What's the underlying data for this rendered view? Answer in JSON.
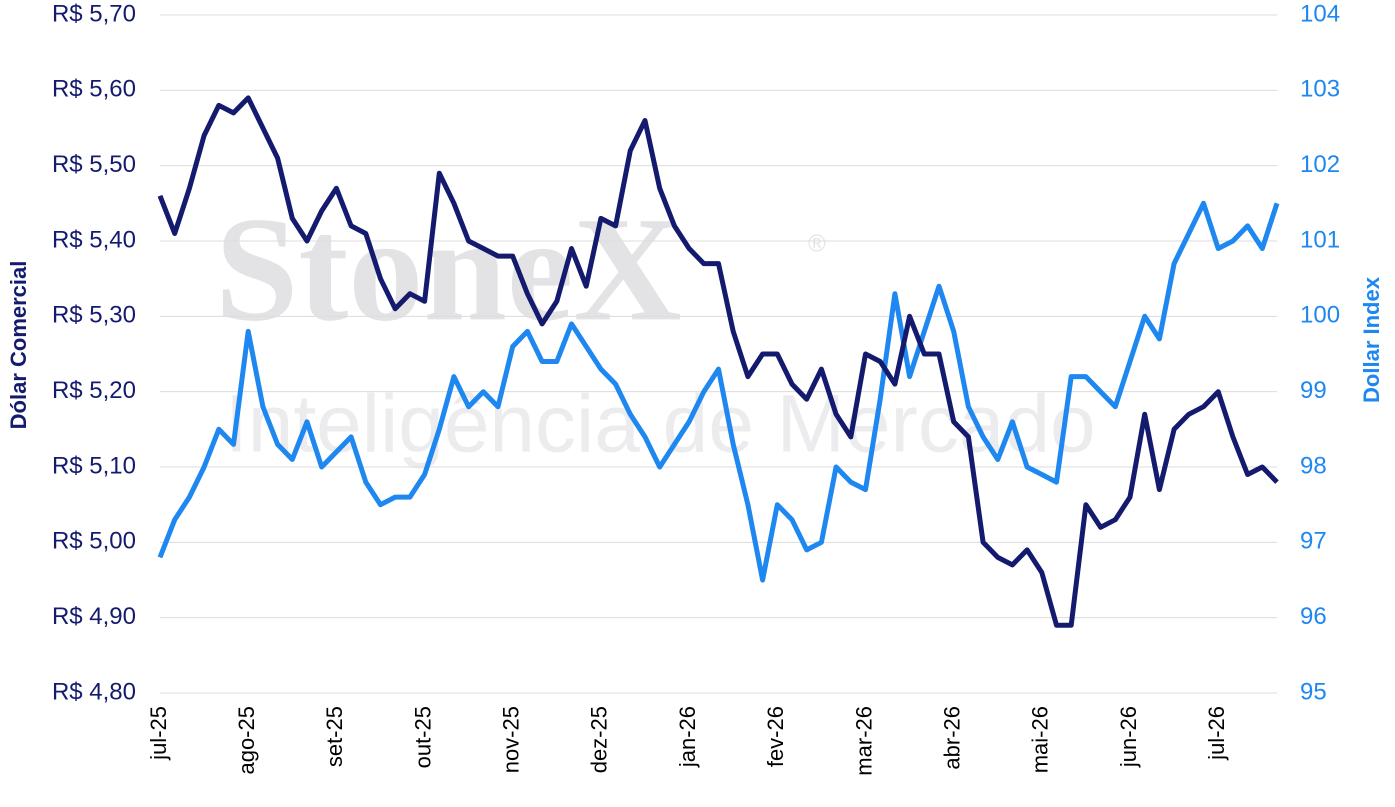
{
  "chart_data": {
    "type": "line",
    "watermark": [
      "StoneX",
      "®",
      "Inteligência de Mercado"
    ],
    "y_label": "Dólar Comercial",
    "y2_label": "Dollar Index",
    "categories": [
      "jul-25",
      null,
      null,
      null,
      null,
      null,
      "ago-25",
      null,
      null,
      null,
      null,
      null,
      "set-25",
      null,
      null,
      null,
      null,
      null,
      "out-25",
      null,
      null,
      null,
      null,
      null,
      "nov-25",
      null,
      null,
      null,
      null,
      null,
      "dez-25",
      null,
      null,
      null,
      null,
      null,
      "jan-26",
      null,
      null,
      null,
      null,
      null,
      "fev-26",
      null,
      null,
      null,
      null,
      null,
      "mar-26",
      null,
      null,
      null,
      null,
      null,
      "abr-26",
      null,
      null,
      null,
      null,
      null,
      "mai-26",
      null,
      null,
      null,
      null,
      null,
      "jun-26",
      null,
      null,
      null,
      null,
      null,
      "jul-26",
      null,
      null,
      null,
      null
    ],
    "series": [
      {
        "color": "#141b6e",
        "axis": "y",
        "values": [
          5.46,
          5.41,
          5.47,
          5.54,
          5.58,
          5.57,
          5.59,
          5.55,
          5.51,
          5.43,
          5.4,
          5.44,
          5.47,
          5.42,
          5.41,
          5.35,
          5.31,
          5.33,
          5.32,
          5.49,
          5.45,
          5.4,
          5.39,
          5.38,
          5.38,
          5.33,
          5.29,
          5.32,
          5.39,
          5.34,
          5.43,
          5.42,
          5.52,
          5.56,
          5.47,
          5.42,
          5.39,
          5.37,
          5.37,
          5.28,
          5.22,
          5.25,
          5.25,
          5.21,
          5.19,
          5.23,
          5.17,
          5.14,
          5.25,
          5.24,
          5.21,
          5.3,
          5.25,
          5.25,
          5.16,
          5.14,
          5.0,
          4.98,
          4.97,
          4.99,
          4.96,
          4.89,
          4.89,
          5.05,
          5.02,
          5.03,
          5.06,
          5.17,
          5.07,
          5.15,
          5.17,
          5.18,
          5.2,
          5.14,
          5.09,
          5.1,
          5.08
        ]
      },
      {
        "color": "#1e88f0",
        "axis": "y2",
        "values": [
          96.8,
          97.3,
          97.6,
          98.0,
          98.5,
          98.3,
          99.8,
          98.8,
          98.3,
          98.1,
          98.6,
          98.0,
          98.2,
          98.4,
          97.8,
          97.5,
          97.6,
          97.6,
          97.9,
          98.5,
          99.2,
          98.8,
          99.0,
          98.8,
          99.6,
          99.8,
          99.4,
          99.4,
          99.9,
          99.6,
          99.3,
          99.1,
          98.7,
          98.4,
          98.0,
          98.3,
          98.6,
          99.0,
          99.3,
          98.3,
          97.5,
          96.5,
          97.5,
          97.3,
          96.9,
          97.0,
          98.0,
          97.8,
          97.7,
          98.9,
          100.3,
          99.2,
          99.8,
          100.4,
          99.8,
          98.8,
          98.4,
          98.1,
          98.6,
          98.0,
          97.9,
          97.8,
          99.2,
          99.2,
          99.0,
          98.8,
          99.4,
          100.0,
          99.7,
          100.7,
          101.1,
          101.5,
          100.9,
          101.0,
          101.2,
          100.9,
          101.5
        ]
      }
    ],
    "ylim": [
      4.8,
      5.7
    ],
    "yticks": [
      {
        "value": 4.8,
        "label": "R$ 4,80"
      },
      {
        "value": 4.9,
        "label": "R$ 4,90"
      },
      {
        "value": 5.0,
        "label": "R$ 5,00"
      },
      {
        "value": 5.1,
        "label": "R$ 5,10"
      },
      {
        "value": 5.2,
        "label": "R$ 5,20"
      },
      {
        "value": 5.3,
        "label": "R$ 5,30"
      },
      {
        "value": 5.4,
        "label": "R$ 5,40"
      },
      {
        "value": 5.5,
        "label": "R$ 5,50"
      },
      {
        "value": 5.6,
        "label": "R$ 5,60"
      },
      {
        "value": 5.7,
        "label": "R$ 5,70"
      }
    ],
    "y2lim": [
      95,
      104
    ],
    "y2ticks": [
      95,
      96,
      97,
      98,
      99,
      100,
      101,
      102,
      103,
      104
    ],
    "grid": true
  }
}
